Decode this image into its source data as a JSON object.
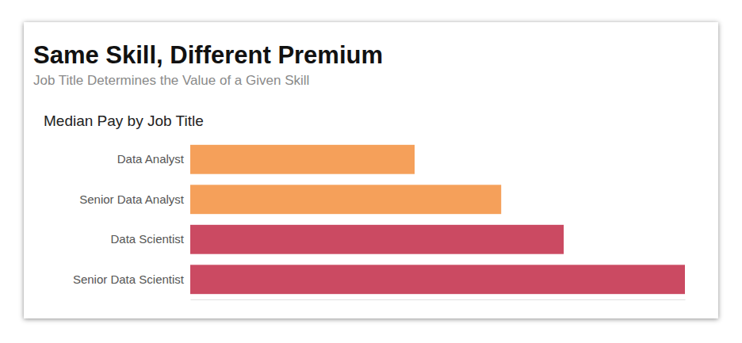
{
  "chart_data": {
    "type": "bar",
    "orientation": "horizontal",
    "title": "Same Skill, Different Premium",
    "subtitle": "Job Title Determines the Value of a Given Skill",
    "plot_title": "Median Pay by Job Title",
    "categories": [
      "Data Analyst",
      "Senior Data Analyst",
      "Data Scientist",
      "Senior Data Scientist"
    ],
    "values": [
      63500,
      88000,
      105700,
      140000
    ],
    "colors": [
      "#f5a05a",
      "#f5a05a",
      "#cb4a62",
      "#cb4a62"
    ],
    "xlim": [
      0,
      140000
    ],
    "tick_labels": "y",
    "grid": false
  }
}
